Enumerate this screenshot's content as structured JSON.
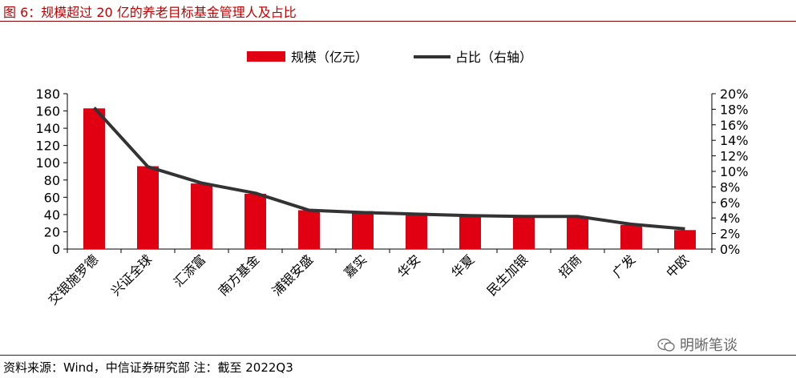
{
  "figure": {
    "title": "图 6：规模超过 20 亿的养老目标基金管理人及占比",
    "source": "资料来源：Wind，中信证券研究部   注：截至 2022Q3",
    "watermark": "明晰笔谈"
  },
  "colors": {
    "bar": "#E00012",
    "line": "#333333",
    "title": "#C00000",
    "rule": "#8B0000"
  },
  "chart_data": {
    "type": "bar",
    "title": "",
    "categories": [
      "交银施罗德",
      "兴证全球",
      "汇添富",
      "南方基金",
      "浦银安盛",
      "嘉实",
      "华安",
      "华夏",
      "民生加银",
      "招商",
      "广发",
      "中欧"
    ],
    "series": [
      {
        "name": "规模（亿元）",
        "type": "bar",
        "axis": "left",
        "values": [
          163,
          96,
          76,
          64,
          45,
          44,
          42,
          40,
          38,
          37,
          28,
          22
        ]
      },
      {
        "name": "占比（右轴）",
        "type": "line",
        "axis": "right",
        "values": [
          0.182,
          0.106,
          0.085,
          0.072,
          0.05,
          0.047,
          0.045,
          0.043,
          0.042,
          0.042,
          0.032,
          0.026
        ]
      }
    ],
    "y_left": {
      "min": 0,
      "max": 180,
      "step": 20,
      "tick_labels": [
        "0",
        "20",
        "40",
        "60",
        "80",
        "100",
        "120",
        "140",
        "160",
        "180"
      ]
    },
    "y_right": {
      "min": 0,
      "max": 0.2,
      "step": 0.02,
      "tick_labels": [
        "0%",
        "2%",
        "4%",
        "6%",
        "8%",
        "10%",
        "12%",
        "14%",
        "16%",
        "18%",
        "20%"
      ]
    },
    "grid": false,
    "legend": "top-center"
  }
}
